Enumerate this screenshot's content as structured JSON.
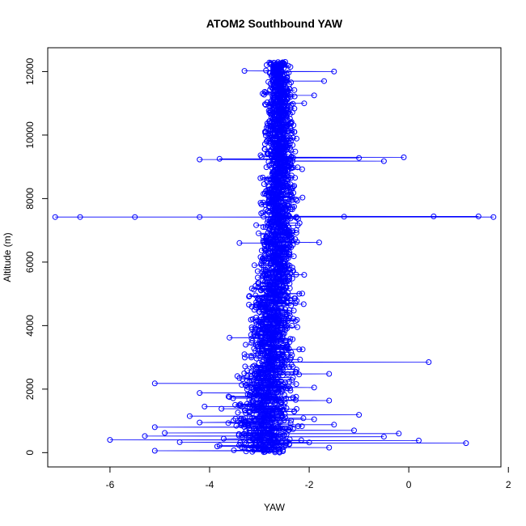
{
  "chart_data": {
    "type": "scatter",
    "title": "ATOM2 Southbound YAW",
    "xlabel": "YAW",
    "ylabel": "Altitude (m)",
    "xlim": [
      -7.25,
      1.85
    ],
    "ylim": [
      -450,
      12750
    ],
    "x_ticks": [
      -6,
      -4,
      -2,
      0,
      2
    ],
    "y_ticks": [
      0,
      2000,
      4000,
      6000,
      8000,
      10000,
      12000
    ],
    "x_tick_labels": [
      "-6",
      "-4",
      "-2",
      "0",
      "2"
    ],
    "y_tick_labels": [
      "0",
      "2000",
      "4000",
      "6000",
      "8000",
      "10000",
      "12000"
    ],
    "grid": false,
    "legend": "none",
    "color": "#0000ff",
    "marker": "open-circle",
    "connect_points": true,
    "series": [
      {
        "values": [
          {
            "x": -2.9,
            "y": 80
          },
          {
            "x": -5.1,
            "y": 60
          },
          {
            "x": -3.3,
            "y": 150
          },
          {
            "x": -2.6,
            "y": 180
          },
          {
            "x": -1.6,
            "y": 160
          },
          {
            "x": -3.8,
            "y": 220
          },
          {
            "x": -2.4,
            "y": 260
          },
          {
            "x": 1.15,
            "y": 300
          },
          {
            "x": -2.0,
            "y": 320
          },
          {
            "x": -4.6,
            "y": 330
          },
          {
            "x": -6.0,
            "y": 400
          },
          {
            "x": -2.9,
            "y": 410
          },
          {
            "x": 0.2,
            "y": 380
          },
          {
            "x": -2.8,
            "y": 450
          },
          {
            "x": -0.5,
            "y": 500
          },
          {
            "x": -5.3,
            "y": 520
          },
          {
            "x": -3.0,
            "y": 540
          },
          {
            "x": -2.5,
            "y": 560
          },
          {
            "x": -0.2,
            "y": 600
          },
          {
            "x": -4.9,
            "y": 620
          },
          {
            "x": -2.7,
            "y": 680
          },
          {
            "x": -1.1,
            "y": 700
          },
          {
            "x": -5.1,
            "y": 800
          },
          {
            "x": -2.8,
            "y": 830
          },
          {
            "x": -1.5,
            "y": 880
          },
          {
            "x": -4.2,
            "y": 950
          },
          {
            "x": -2.6,
            "y": 1000
          },
          {
            "x": -1.9,
            "y": 1050
          },
          {
            "x": -4.4,
            "y": 1150
          },
          {
            "x": -1.0,
            "y": 1190
          },
          {
            "x": -3.2,
            "y": 1260
          },
          {
            "x": -2.3,
            "y": 1300
          },
          {
            "x": -4.1,
            "y": 1450
          },
          {
            "x": -2.9,
            "y": 1500
          },
          {
            "x": -1.6,
            "y": 1640
          },
          {
            "x": -3.6,
            "y": 1750
          },
          {
            "x": -2.5,
            "y": 1820
          },
          {
            "x": -4.2,
            "y": 1880
          },
          {
            "x": -3.1,
            "y": 1960
          },
          {
            "x": -1.9,
            "y": 2050
          },
          {
            "x": -5.1,
            "y": 2180
          },
          {
            "x": -2.7,
            "y": 2220
          },
          {
            "x": -3.4,
            "y": 2350
          },
          {
            "x": -1.6,
            "y": 2480
          },
          {
            "x": -2.9,
            "y": 2600
          },
          {
            "x": -2.4,
            "y": 2700
          },
          {
            "x": 0.4,
            "y": 2850
          },
          {
            "x": -2.8,
            "y": 2950
          },
          {
            "x": -3.3,
            "y": 3100
          },
          {
            "x": -2.2,
            "y": 3250
          },
          {
            "x": -3.6,
            "y": 3620
          },
          {
            "x": -2.6,
            "y": 3800
          },
          {
            "x": -3.0,
            "y": 4100
          },
          {
            "x": -2.4,
            "y": 4400
          },
          {
            "x": -2.8,
            "y": 4700
          },
          {
            "x": -2.2,
            "y": 5000
          },
          {
            "x": -2.7,
            "y": 5300
          },
          {
            "x": -2.1,
            "y": 5600
          },
          {
            "x": -3.1,
            "y": 5900
          },
          {
            "x": -2.6,
            "y": 6200
          },
          {
            "x": -3.4,
            "y": 6600
          },
          {
            "x": -1.8,
            "y": 6620
          },
          {
            "x": -2.7,
            "y": 6900
          },
          {
            "x": -2.5,
            "y": 7200
          },
          {
            "x": -7.1,
            "y": 7420
          },
          {
            "x": -6.6,
            "y": 7420
          },
          {
            "x": -5.5,
            "y": 7420
          },
          {
            "x": -4.2,
            "y": 7420
          },
          {
            "x": -2.6,
            "y": 7430
          },
          {
            "x": -1.3,
            "y": 7430
          },
          {
            "x": 0.5,
            "y": 7440
          },
          {
            "x": 1.4,
            "y": 7440
          },
          {
            "x": 1.7,
            "y": 7420
          },
          {
            "x": -2.7,
            "y": 7480
          },
          {
            "x": -2.5,
            "y": 7800
          },
          {
            "x": -2.8,
            "y": 8100
          },
          {
            "x": -2.3,
            "y": 8400
          },
          {
            "x": -2.7,
            "y": 8700
          },
          {
            "x": -2.4,
            "y": 9000
          },
          {
            "x": -4.2,
            "y": 9230
          },
          {
            "x": -3.8,
            "y": 9250
          },
          {
            "x": -2.6,
            "y": 9250
          },
          {
            "x": -1.0,
            "y": 9280
          },
          {
            "x": -0.1,
            "y": 9300
          },
          {
            "x": -0.5,
            "y": 9180
          },
          {
            "x": -2.7,
            "y": 9150
          },
          {
            "x": -2.5,
            "y": 9500
          },
          {
            "x": -2.8,
            "y": 9800
          },
          {
            "x": -2.3,
            "y": 10100
          },
          {
            "x": -2.6,
            "y": 10400
          },
          {
            "x": -2.8,
            "y": 10700
          },
          {
            "x": -2.1,
            "y": 11000
          },
          {
            "x": -1.9,
            "y": 11250
          },
          {
            "x": -2.5,
            "y": 11300
          },
          {
            "x": -2.7,
            "y": 11600
          },
          {
            "x": -1.7,
            "y": 11700
          },
          {
            "x": -2.6,
            "y": 11850
          },
          {
            "x": -1.5,
            "y": 12000
          },
          {
            "x": -3.3,
            "y": 12020
          },
          {
            "x": -2.7,
            "y": 12100
          },
          {
            "x": -2.5,
            "y": 12250
          },
          {
            "x": -2.7,
            "y": 12270
          }
        ]
      }
    ],
    "dense_core": {
      "profile": [
        {
          "y": 0,
          "center": -2.95,
          "spread": 0.35
        },
        {
          "y": 1000,
          "center": -2.9,
          "spread": 0.32
        },
        {
          "y": 2000,
          "center": -2.85,
          "spread": 0.28
        },
        {
          "y": 3000,
          "center": -2.8,
          "spread": 0.25
        },
        {
          "y": 4000,
          "center": -2.75,
          "spread": 0.22
        },
        {
          "y": 5000,
          "center": -2.7,
          "spread": 0.2
        },
        {
          "y": 6000,
          "center": -2.65,
          "spread": 0.18
        },
        {
          "y": 7000,
          "center": -2.6,
          "spread": 0.17
        },
        {
          "y": 8000,
          "center": -2.6,
          "spread": 0.16
        },
        {
          "y": 9000,
          "center": -2.6,
          "spread": 0.15
        },
        {
          "y": 10000,
          "center": -2.6,
          "spread": 0.15
        },
        {
          "y": 11000,
          "center": -2.6,
          "spread": 0.14
        },
        {
          "y": 12000,
          "center": -2.6,
          "spread": 0.12
        },
        {
          "y": 12300,
          "center": -2.6,
          "spread": 0.1
        }
      ]
    }
  }
}
